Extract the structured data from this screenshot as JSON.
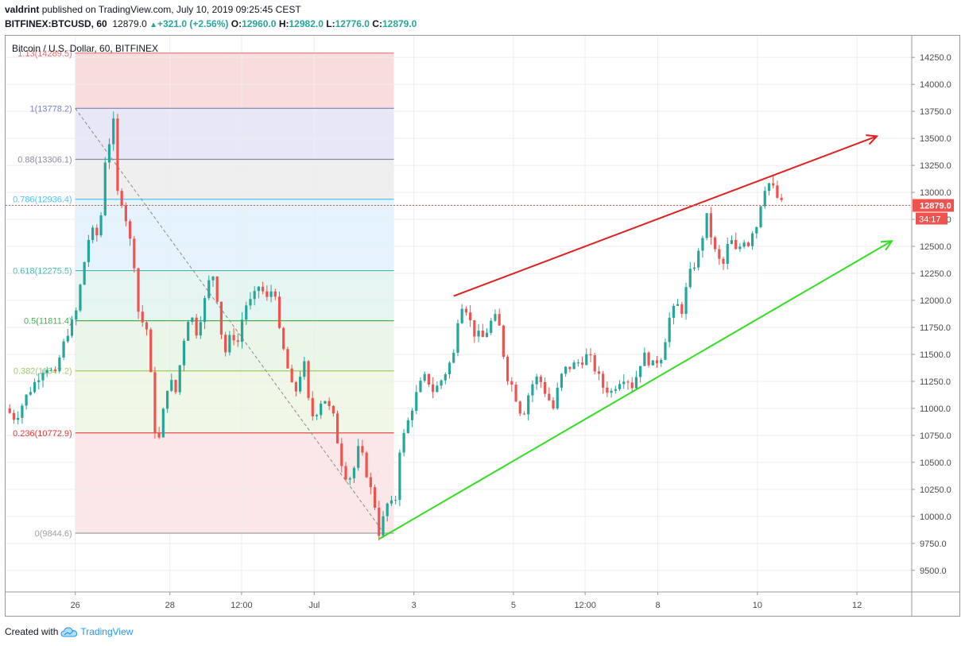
{
  "header": {
    "author": "valdrint",
    "published_text": "published on TradingView.com, July 10, 2019 09:25:45 CEST",
    "symbol": "BITFINEX:BTCUSD, 60",
    "last": "12879.0",
    "change": "+321.0 (+2.56%)",
    "open_label": "O:",
    "open": "12960.0",
    "high_label": "H:",
    "high": "12982.0",
    "low_label": "L:",
    "low": "12776.0",
    "close_label": "C:",
    "close": "12879.0"
  },
  "footer": {
    "created_with": "Created with",
    "brand": "TradingView"
  },
  "chart_data": {
    "type": "candlestick",
    "title": "Bitcoin / U.S. Dollar, 60, BITFINEX",
    "y_axis": {
      "ylim": [
        9300,
        14450
      ],
      "ticks": [
        9500,
        9750,
        10000,
        10250,
        10500,
        10750,
        11000,
        11250,
        11500,
        11750,
        12000,
        12250,
        12500,
        12750,
        13000,
        13250,
        13500,
        13750,
        14000,
        14250
      ],
      "tick_labels": [
        "9500.0",
        "9750.0",
        "10000.0",
        "10250.0",
        "10500.0",
        "10750.0",
        "11000.0",
        "11250.0",
        "11500.0",
        "11750.0",
        "12000.0",
        "12250.0",
        "12500.0",
        "12750.0",
        "13000.0",
        "13250.0",
        "13500.0",
        "13750.0",
        "14000.0",
        "14250.0"
      ]
    },
    "x_axis": {
      "xlim_days": [
        0,
        9.1
      ],
      "ticks": [
        {
          "day": 0.7,
          "label": "26"
        },
        {
          "day": 1.65,
          "label": "28"
        },
        {
          "day": 2.37,
          "label": "12:00"
        },
        {
          "day": 3.1,
          "label": "Jul"
        },
        {
          "day": 4.1,
          "label": "3"
        },
        {
          "day": 5.1,
          "label": "5"
        },
        {
          "day": 5.82,
          "label": "12:00"
        },
        {
          "day": 6.55,
          "label": "8"
        },
        {
          "day": 7.55,
          "label": "10"
        },
        {
          "day": 8.55,
          "label": "12"
        }
      ]
    },
    "price_label": {
      "value": 12879.0,
      "text": "12879.0",
      "countdown": "34:17",
      "color": "#ef5350"
    },
    "fib": {
      "x_start": 0.7,
      "x_end": 3.9,
      "levels": [
        {
          "label": "1.13(14289.5)",
          "price": 14289.5,
          "color": "#e57373"
        },
        {
          "label": "1(13778.2)",
          "price": 13778.2,
          "color": "#7e7ec8"
        },
        {
          "label": "0.88(13306.1)",
          "price": 13306.1,
          "color": "#8a8a9a"
        },
        {
          "label": "0.786(12936.4)",
          "price": 12936.4,
          "color": "#4fc3f7"
        },
        {
          "label": "0.618(12275.5)",
          "price": 12275.5,
          "color": "#4db6ac"
        },
        {
          "label": "0.5(11811.4)",
          "price": 11811.4,
          "color": "#4caf50"
        },
        {
          "label": "0.382(11347.2)",
          "price": 11347.2,
          "color": "#9ccc65"
        },
        {
          "label": "0.236(10772.9)",
          "price": 10772.9,
          "color": "#e53935"
        },
        {
          "label": "0(9844.6)",
          "price": 9844.6,
          "color": "#9e9e9e"
        }
      ],
      "fills": [
        {
          "from": 14289.5,
          "to": 13778.2,
          "color": "#f8d7d7"
        },
        {
          "from": 13778.2,
          "to": 13306.1,
          "color": "#e3e3f6"
        },
        {
          "from": 13306.1,
          "to": 12936.4,
          "color": "#ececec"
        },
        {
          "from": 12936.4,
          "to": 12275.5,
          "color": "#e0f1fb"
        },
        {
          "from": 12275.5,
          "to": 11811.4,
          "color": "#e1f3ef"
        },
        {
          "from": 11811.4,
          "to": 11347.2,
          "color": "#e6f4e4"
        },
        {
          "from": 11347.2,
          "to": 10772.9,
          "color": "#eef6e3"
        },
        {
          "from": 10772.9,
          "to": 9844.6,
          "color": "#fae3e3"
        }
      ],
      "diagonal": [
        {
          "day": 0.7,
          "price": 13778.2
        },
        {
          "day": 3.8,
          "price": 9844.6
        }
      ]
    },
    "trend_lines": [
      {
        "name": "resistance",
        "color": "#e02020",
        "from": {
          "day": 4.5,
          "price": 12040
        },
        "to": {
          "day": 8.75,
          "price": 13520
        }
      },
      {
        "name": "support",
        "color": "#33dd22",
        "from": {
          "day": 3.75,
          "price": 9790
        },
        "to": {
          "day": 8.9,
          "price": 12550
        }
      }
    ],
    "path_points": [
      [
        0.0,
        11000
      ],
      [
        0.1,
        10900
      ],
      [
        0.2,
        11100
      ],
      [
        0.3,
        11250
      ],
      [
        0.4,
        11400
      ],
      [
        0.5,
        11300
      ],
      [
        0.55,
        11500
      ],
      [
        0.62,
        11700
      ],
      [
        0.7,
        11850
      ],
      [
        0.78,
        12300
      ],
      [
        0.85,
        12650
      ],
      [
        0.92,
        12600
      ],
      [
        0.96,
        12800
      ],
      [
        1.0,
        13300
      ],
      [
        1.05,
        13500
      ],
      [
        1.08,
        13700
      ],
      [
        1.12,
        13000
      ],
      [
        1.18,
        12900
      ],
      [
        1.22,
        12700
      ],
      [
        1.3,
        12300
      ],
      [
        1.35,
        11700
      ],
      [
        1.4,
        11900
      ],
      [
        1.45,
        11400
      ],
      [
        1.5,
        10800
      ],
      [
        1.55,
        10700
      ],
      [
        1.6,
        11100
      ],
      [
        1.65,
        11300
      ],
      [
        1.7,
        11100
      ],
      [
        1.75,
        11400
      ],
      [
        1.8,
        11700
      ],
      [
        1.85,
        11900
      ],
      [
        1.92,
        11700
      ],
      [
        2.0,
        12000
      ],
      [
        2.05,
        12200
      ],
      [
        2.1,
        12250
      ],
      [
        2.15,
        11800
      ],
      [
        2.2,
        11500
      ],
      [
        2.27,
        11700
      ],
      [
        2.33,
        11600
      ],
      [
        2.4,
        11950
      ],
      [
        2.48,
        12000
      ],
      [
        2.55,
        12150
      ],
      [
        2.62,
        12000
      ],
      [
        2.7,
        12150
      ],
      [
        2.75,
        11700
      ],
      [
        2.8,
        11500
      ],
      [
        2.85,
        11300
      ],
      [
        2.9,
        11100
      ],
      [
        2.95,
        11300
      ],
      [
        3.0,
        11400
      ],
      [
        3.05,
        11000
      ],
      [
        3.1,
        10900
      ],
      [
        3.15,
        11050
      ],
      [
        3.2,
        11100
      ],
      [
        3.25,
        11000
      ],
      [
        3.3,
        10900
      ],
      [
        3.35,
        10600
      ],
      [
        3.4,
        10400
      ],
      [
        3.45,
        10350
      ],
      [
        3.5,
        10450
      ],
      [
        3.55,
        10650
      ],
      [
        3.6,
        10500
      ],
      [
        3.65,
        10300
      ],
      [
        3.7,
        10150
      ],
      [
        3.75,
        9850
      ],
      [
        3.8,
        10000
      ],
      [
        3.86,
        10200
      ],
      [
        3.9,
        9950
      ],
      [
        3.95,
        10600
      ],
      [
        4.0,
        10750
      ],
      [
        4.08,
        11000
      ],
      [
        4.15,
        11200
      ],
      [
        4.22,
        11300
      ],
      [
        4.3,
        11150
      ],
      [
        4.4,
        11300
      ],
      [
        4.5,
        11500
      ],
      [
        4.55,
        11900
      ],
      [
        4.6,
        12000
      ],
      [
        4.65,
        11850
      ],
      [
        4.7,
        11700
      ],
      [
        4.8,
        11650
      ],
      [
        4.9,
        11850
      ],
      [
        4.95,
        11800
      ],
      [
        5.0,
        11500
      ],
      [
        5.05,
        11250
      ],
      [
        5.1,
        11200
      ],
      [
        5.15,
        11000
      ],
      [
        5.2,
        10950
      ],
      [
        5.27,
        11200
      ],
      [
        5.35,
        11300
      ],
      [
        5.42,
        11150
      ],
      [
        5.5,
        11000
      ],
      [
        5.55,
        11200
      ],
      [
        5.6,
        11350
      ],
      [
        5.7,
        11400
      ],
      [
        5.8,
        11450
      ],
      [
        5.85,
        11500
      ],
      [
        5.9,
        11400
      ],
      [
        5.95,
        11300
      ],
      [
        6.0,
        11200
      ],
      [
        6.08,
        11150
      ],
      [
        6.15,
        11250
      ],
      [
        6.22,
        11300
      ],
      [
        6.3,
        11200
      ],
      [
        6.35,
        11350
      ],
      [
        6.4,
        11500
      ],
      [
        6.45,
        11450
      ],
      [
        6.5,
        11400
      ],
      [
        6.55,
        11450
      ],
      [
        6.6,
        11500
      ],
      [
        6.65,
        11800
      ],
      [
        6.7,
        11900
      ],
      [
        6.75,
        11950
      ],
      [
        6.8,
        11900
      ],
      [
        6.85,
        12200
      ],
      [
        6.9,
        12300
      ],
      [
        6.95,
        12400
      ],
      [
        7.0,
        12600
      ],
      [
        7.05,
        12800
      ],
      [
        7.1,
        12500
      ],
      [
        7.15,
        12400
      ],
      [
        7.2,
        12300
      ],
      [
        7.25,
        12500
      ],
      [
        7.3,
        12550
      ],
      [
        7.35,
        12400
      ],
      [
        7.4,
        12600
      ],
      [
        7.45,
        12500
      ],
      [
        7.5,
        12650
      ],
      [
        7.55,
        12700
      ],
      [
        7.6,
        13000
      ],
      [
        7.65,
        13100
      ],
      [
        7.7,
        13050
      ],
      [
        7.75,
        12950
      ],
      [
        7.8,
        12879
      ]
    ]
  }
}
